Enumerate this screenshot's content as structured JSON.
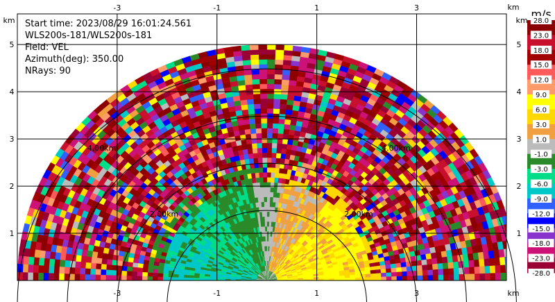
{
  "chart_data": {
    "type": "ppi-radar-scan",
    "info_lines": [
      "Start time: 2023/08/29 16:01:24.561",
      "WLS200s-181/WLS200s-181",
      "Field: VEL",
      "Azimuth(deg): 350.00",
      "NRays: 90"
    ],
    "x_unit": "km",
    "y_unit": "km",
    "x_ticks": [
      -3,
      -1,
      1,
      3
    ],
    "y_ticks": [
      1,
      2,
      3,
      4,
      5
    ],
    "xlim": [
      -5.0,
      4.8
    ],
    "ylim": [
      0,
      5.65
    ],
    "range_rings_km": [
      2,
      3,
      4,
      5
    ],
    "range_ring_labels": [
      {
        "text": "2.00km",
        "x_km": -2.35,
        "y_km": 1.35
      },
      {
        "text": "2.00km",
        "x_km": 1.55,
        "y_km": 1.35
      },
      {
        "text": "4.00km",
        "x_km": -3.6,
        "y_km": 2.75
      },
      {
        "text": "4.00km",
        "x_km": 2.3,
        "y_km": 2.75
      }
    ],
    "max_range_km": 5.0,
    "sector_deg": [
      0,
      180
    ],
    "colorbar": {
      "unit": "m/s",
      "labels": [
        "28.0",
        "23.0",
        "18.0",
        "15.0",
        "12.0",
        "9.0",
        "6.0",
        "3.0",
        "1.0",
        "-1.0",
        "-3.0",
        "-6.0",
        "-9.0",
        "-12.0",
        "-15.0",
        "-18.0",
        "-23.0",
        "-28.0"
      ],
      "colors": [
        "#8b0000",
        "#c8102e",
        "#a00000",
        "#ff5a5a",
        "#ff9a6b",
        "#ffff00",
        "#ffd800",
        "#f0a040",
        "#bbbbbb",
        "#2a8a2a",
        "#00dd88",
        "#00c8c8",
        "#3060ff",
        "#0000ff",
        "#8833cc",
        "#cc1177",
        "#990033"
      ]
    }
  }
}
